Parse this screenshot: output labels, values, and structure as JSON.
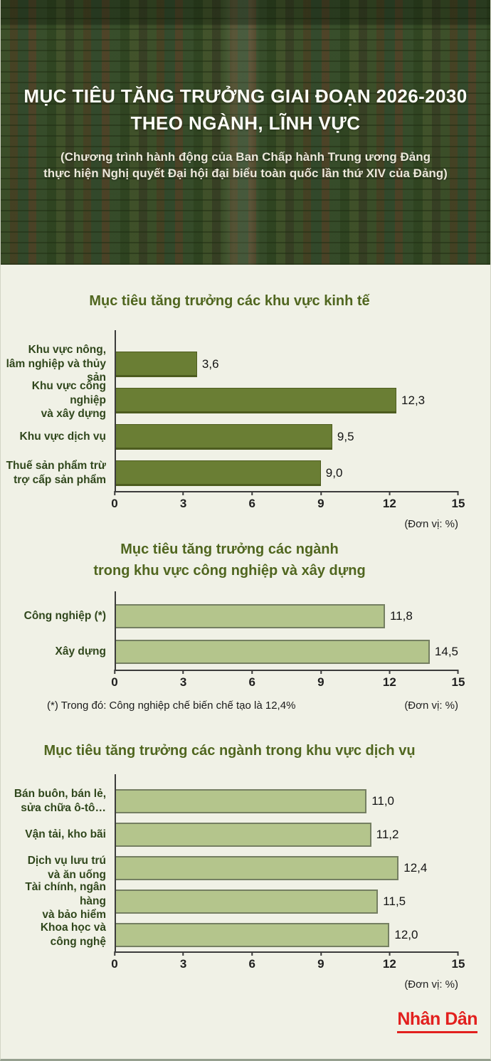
{
  "page": {
    "header": {
      "title_line1": "MỤC TIÊU TĂNG TRƯỞNG GIAI ĐOẠN 2026-2030",
      "title_line2": "THEO NGÀNH, LĨNH VỰC",
      "subtitle": "(Chương trình hành động của Ban Chấp hành Trung ương Đảng\nthực hiện Nghị quyết Đại hội đại biểu toàn quốc lần thứ XIV của Đảng)"
    },
    "footer": {
      "brand": "Nhân Dân",
      "brand_color": "#e2201e"
    },
    "colors": {
      "background": "#f0f1e6",
      "chart_title_green": "#50661f",
      "category_label_green": "#30471c",
      "bar_dark_olive": "#6a7e34",
      "bar_light_green": "#b4c58c",
      "axis": "#3c3c3c",
      "brand_red": "#e2201e"
    }
  },
  "chart_data": [
    {
      "type": "bar",
      "orientation": "horizontal",
      "title": "Mục tiêu tăng trưởng các khu vực kinh tế",
      "categories": [
        "Khu vực nông,\nlâm nghiệp và thủy sản",
        "Khu vực công nghiệp\nvà xây dựng",
        "Khu vực dịch vụ",
        "Thuế sản phẩm trừ\ntrợ cấp sản phẩm"
      ],
      "values": [
        3.6,
        12.3,
        9.5,
        9.0
      ],
      "value_labels": [
        "3,6",
        "12,3",
        "9,5",
        "9,0"
      ],
      "xlim": [
        0,
        15
      ],
      "xticks": [
        "0",
        "3",
        "6",
        "9",
        "12",
        "15"
      ],
      "unit_note": "(Đơn vị: %)",
      "bar_color": "#6a7e34",
      "grid": false,
      "legend": null
    },
    {
      "type": "bar",
      "orientation": "horizontal",
      "title": "Mục tiêu tăng trưởng các ngành\ntrong khu vực công nghiệp và xây dựng",
      "categories": [
        "Công nghiệp (*)",
        "Xây dựng"
      ],
      "values": [
        11.8,
        14.5
      ],
      "value_labels": [
        "11,8",
        "14,5"
      ],
      "xlim": [
        0,
        15
      ],
      "xticks": [
        "0",
        "3",
        "6",
        "9",
        "12",
        "15"
      ],
      "unit_note": "(Đơn vị: %)",
      "footnote": "(*) Trong đó: Công nghiệp chế biến chế tạo là 12,4%",
      "bar_color": "#b4c58c",
      "grid": false,
      "legend": null
    },
    {
      "type": "bar",
      "orientation": "horizontal",
      "title": "Mục tiêu tăng trưởng các ngành trong khu vực dịch vụ",
      "categories": [
        "Bán buôn, bán lẻ,\nsửa chữa ô-tô…",
        "Vận tải, kho bãi",
        "Dịch vụ lưu trú\nvà ăn uống",
        "Tài chính, ngân hàng\nvà bảo hiểm",
        "Khoa học và\ncông nghệ"
      ],
      "values": [
        11.0,
        11.2,
        12.4,
        11.5,
        12.0
      ],
      "value_labels": [
        "11,0",
        "11,2",
        "12,4",
        "11,5",
        "12,0"
      ],
      "xlim": [
        0,
        15
      ],
      "xticks": [
        "0",
        "3",
        "6",
        "9",
        "12",
        "15"
      ],
      "unit_note": "(Đơn vị: %)",
      "bar_color": "#b4c58c",
      "grid": false,
      "legend": null
    }
  ]
}
